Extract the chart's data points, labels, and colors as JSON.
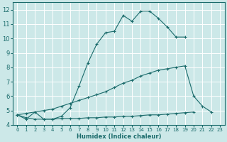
{
  "xlabel": "Humidex (Indice chaleur)",
  "bg_color": "#cce8e8",
  "grid_color": "#ffffff",
  "line_color": "#1a6b6b",
  "xlim": [
    -0.5,
    23.5
  ],
  "ylim": [
    4,
    12.5
  ],
  "xticks": [
    0,
    1,
    2,
    3,
    4,
    5,
    6,
    7,
    8,
    9,
    10,
    11,
    12,
    13,
    14,
    15,
    16,
    17,
    18,
    19,
    20,
    21,
    22,
    23
  ],
  "yticks": [
    4,
    5,
    6,
    7,
    8,
    9,
    10,
    11,
    12
  ],
  "line1": {
    "x": [
      0,
      1,
      2,
      3,
      4,
      5,
      6,
      7,
      8,
      9,
      10,
      11,
      12,
      13,
      14,
      15,
      16,
      17,
      18,
      19
    ],
    "y": [
      4.7,
      4.4,
      4.9,
      4.4,
      4.4,
      4.6,
      5.2,
      6.7,
      8.3,
      9.6,
      10.4,
      10.5,
      11.6,
      11.2,
      11.9,
      11.9,
      11.4,
      10.8,
      10.1,
      10.1
    ]
  },
  "line2": {
    "x": [
      0,
      1,
      2,
      3,
      4,
      5,
      6,
      7,
      8,
      9,
      10,
      11,
      12,
      13,
      14,
      15,
      16,
      17,
      18,
      19,
      20,
      21,
      22
    ],
    "y": [
      4.7,
      4.8,
      4.9,
      5.0,
      5.1,
      5.3,
      5.5,
      5.7,
      5.9,
      6.1,
      6.3,
      6.6,
      6.9,
      7.1,
      7.4,
      7.6,
      7.8,
      7.9,
      8.0,
      8.1,
      6.0,
      5.3,
      4.9
    ]
  },
  "line3": {
    "x": [
      0,
      1,
      2,
      3,
      4,
      5,
      6,
      7,
      8,
      9,
      10,
      11,
      12,
      13,
      14,
      15,
      16,
      17,
      18,
      19,
      20
    ],
    "y": [
      4.7,
      4.5,
      4.4,
      4.4,
      4.4,
      4.45,
      4.45,
      4.45,
      4.5,
      4.5,
      4.55,
      4.55,
      4.6,
      4.6,
      4.65,
      4.7,
      4.7,
      4.75,
      4.8,
      4.85,
      4.9
    ]
  }
}
